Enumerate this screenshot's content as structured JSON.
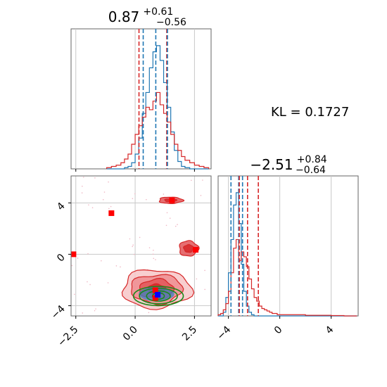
{
  "chart_data": [
    {
      "type": "histogram",
      "panel": "marginal-x",
      "title": {
        "value": "0.87",
        "plus": "+0.61",
        "minus": "−0.56"
      },
      "xlim": [
        -2.7,
        3.2
      ],
      "vlines_blue": [
        0.87,
        0.31,
        1.48
      ],
      "vlines_red": [
        0.87,
        0.31,
        1.48
      ],
      "edges": [
        -1.2,
        -1.0,
        -0.8,
        -0.6,
        -0.45,
        -0.3,
        -0.15,
        0.0,
        0.15,
        0.3,
        0.45,
        0.6,
        0.75,
        0.9,
        1.05,
        1.2,
        1.35,
        1.5,
        1.65,
        1.8,
        1.95,
        2.1,
        2.3,
        2.5,
        2.7,
        2.9,
        3.1
      ],
      "series": [
        {
          "name": "",
          "color": "#1f77b4",
          "counts": [
            0,
            0,
            0,
            0,
            0.01,
            0.02,
            0.05,
            0.12,
            0.25,
            0.45,
            0.62,
            0.82,
            0.95,
            1.0,
            0.88,
            0.7,
            0.5,
            0.3,
            0.15,
            0.06,
            0.02,
            0.01,
            0,
            0,
            0,
            0
          ]
        },
        {
          "name": "",
          "color": "#d62728",
          "counts": [
            0.01,
            0.02,
            0.03,
            0.05,
            0.08,
            0.12,
            0.2,
            0.28,
            0.35,
            0.42,
            0.5,
            0.48,
            0.55,
            0.62,
            0.52,
            0.45,
            0.38,
            0.28,
            0.2,
            0.15,
            0.1,
            0.07,
            0.05,
            0.03,
            0.02,
            0.01
          ]
        }
      ]
    },
    {
      "type": "histogram",
      "panel": "marginal-y",
      "title": {
        "value": "−2.51",
        "plus": "+0.84",
        "minus": "−0.64"
      },
      "xlim": [
        -4.8,
        6.1
      ],
      "vlines_blue": [
        -3.2,
        -3.8,
        -2.9
      ],
      "vlines_red": [
        -2.51,
        -3.15,
        -1.67
      ],
      "edges": [
        -4.8,
        -4.6,
        -4.4,
        -4.2,
        -4.0,
        -3.8,
        -3.6,
        -3.4,
        -3.2,
        -3.0,
        -2.8,
        -2.6,
        -2.4,
        -2.2,
        -2.0,
        -1.8,
        -1.6,
        -1.4,
        -1.2,
        -1.0,
        -0.8,
        -0.6,
        -0.4,
        -0.2,
        0.0,
        0.5,
        1.0,
        1.5,
        2.0,
        3.0,
        4.0,
        5.0,
        6.0
      ],
      "series": [
        {
          "name": "",
          "color": "#1f77b4",
          "counts": [
            0,
            0,
            0.03,
            0.15,
            0.35,
            0.62,
            0.9,
            1.0,
            0.75,
            0.42,
            0.2,
            0.08,
            0.03,
            0.01,
            0,
            0,
            0,
            0,
            0,
            0,
            0,
            0,
            0,
            0,
            0,
            0,
            0,
            0,
            0,
            0,
            0,
            0
          ]
        },
        {
          "name": "",
          "color": "#d62728",
          "counts": [
            0.01,
            0.02,
            0.05,
            0.1,
            0.2,
            0.35,
            0.55,
            0.62,
            0.45,
            0.52,
            0.48,
            0.4,
            0.3,
            0.22,
            0.15,
            0.12,
            0.08,
            0.06,
            0.05,
            0.04,
            0.03,
            0.02,
            0.02,
            0.01,
            0.01,
            0.01,
            0.01,
            0.01,
            0.005,
            0.005,
            0.003,
            0
          ]
        }
      ]
    },
    {
      "type": "contour",
      "panel": "joint",
      "xlim": [
        -2.7,
        3.2
      ],
      "ylim": [
        -4.8,
        6.1
      ],
      "x_ticks": [
        "−2.5",
        "0.0",
        "2.5"
      ],
      "x_tick_values": [
        -2.5,
        0.0,
        2.5
      ],
      "y_ticks": [
        "−4",
        "0",
        "4"
      ],
      "y_tick_values": [
        -4,
        0,
        4
      ],
      "red_outliers": [
        [
          -2.6,
          0.0
        ],
        [
          -1.0,
          3.2
        ],
        [
          1.55,
          4.2
        ],
        [
          2.55,
          0.35
        ],
        [
          0.85,
          -2.8
        ],
        [
          0.85,
          -3.4
        ]
      ],
      "blue_points": [
        [
          0.95,
          -3.15
        ]
      ],
      "red_blobs": [
        {
          "cx": 0.9,
          "cy": -2.7,
          "rx": 1.45,
          "ry": 1.5,
          "levels": 4
        },
        {
          "cx": 1.5,
          "cy": 4.2,
          "rx": 0.5,
          "ry": 0.25,
          "levels": 2
        },
        {
          "cx": 2.25,
          "cy": 0.45,
          "rx": 0.4,
          "ry": 0.6,
          "levels": 2
        }
      ],
      "blue_blob": {
        "cx": 0.9,
        "cy": -3.1,
        "rx": 0.75,
        "ry": 0.55
      },
      "green_contours": {
        "cx": 0.98,
        "cy": -3.25,
        "rx": [
          0.25,
          0.5,
          0.8,
          1.05
        ],
        "ry": [
          0.25,
          0.4,
          0.6,
          0.75
        ]
      }
    }
  ],
  "annotation": {
    "kl_text": "KL = 0.1727"
  }
}
